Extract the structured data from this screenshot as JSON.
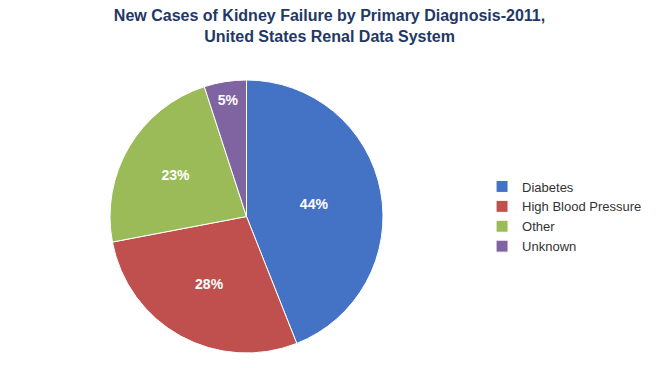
{
  "chart_data": {
    "type": "pie",
    "title": "New Cases of Kidney Failure by Primary Diagnosis-2011,",
    "subtitle": "United States Renal Data System",
    "categories": [
      "Diabetes",
      "High Blood Pressure",
      "Other",
      "Unknown"
    ],
    "values": [
      44,
      28,
      23,
      5
    ],
    "value_labels": [
      "44%",
      "28%",
      "23%",
      "5%"
    ],
    "colors": [
      "#4472C4",
      "#C0504D",
      "#9BBB59",
      "#8064A2"
    ],
    "data_labels": true,
    "legend": "right"
  }
}
